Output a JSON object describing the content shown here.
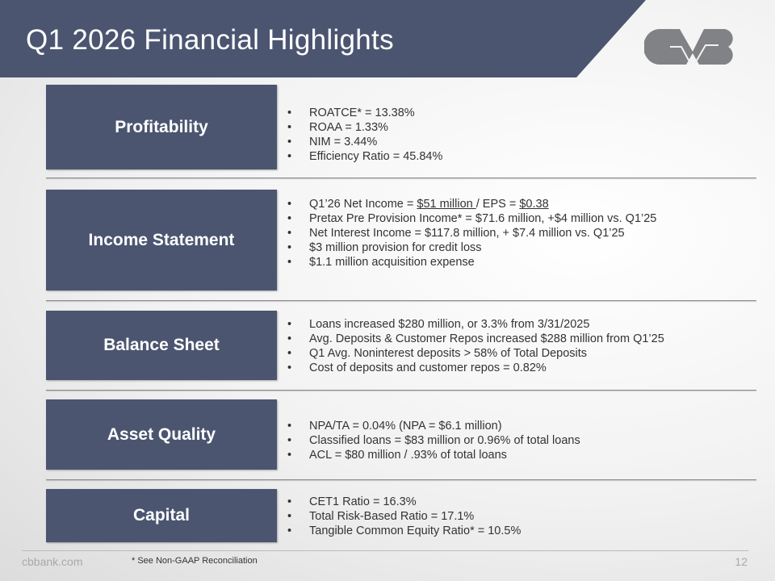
{
  "header": {
    "title": "Q1 2026 Financial Highlights",
    "logo_text": "CVB",
    "colors": {
      "banner": "#4b5570",
      "logo": "#808285"
    }
  },
  "sections": [
    {
      "label": "Profitability",
      "bullets": [
        {
          "text": "ROATCE* = 13.38%"
        },
        {
          "text": "ROAA = 1.33%"
        },
        {
          "text": "NIM = 3.44%"
        },
        {
          "text": "Efficiency Ratio = 45.84%"
        }
      ]
    },
    {
      "label": "Income Statement",
      "bullets": [
        {
          "p1": "Q1’26 Net Income = ",
          "u1": "$51 million ",
          "p2": "/ EPS = ",
          "u2": "$0.38"
        },
        {
          "text": "Pretax Pre Provision Income* = $71.6 million, +$4 million vs. Q1’25"
        },
        {
          "text": "Net Interest Income = $117.8 million, + $7.4 million vs. Q1’25"
        },
        {
          "text": "$3 million provision for credit loss"
        },
        {
          "text": "$1.1 million acquisition expense"
        }
      ]
    },
    {
      "label": "Balance Sheet",
      "bullets": [
        {
          "text": "Loans increased $280 million, or 3.3% from 3/31/2025"
        },
        {
          "text": "Avg. Deposits & Customer Repos increased $288 million from Q1’25"
        },
        {
          "text": "Q1 Avg. Noninterest deposits > 58% of Total Deposits"
        },
        {
          "text": "Cost of deposits and customer repos = 0.82%"
        }
      ]
    },
    {
      "label": "Asset Quality",
      "bullets": [
        {
          "text": "NPA/TA = 0.04% (NPA = $6.1 million)"
        },
        {
          "text": "Classified loans = $83 million or 0.96% of total loans"
        },
        {
          "text": "ACL = $80 million / .93% of total loans"
        }
      ]
    },
    {
      "label": "Capital",
      "bullets": [
        {
          "text": "CET1 Ratio = 16.3%"
        },
        {
          "text": "Total Risk-Based Ratio = 17.1%"
        },
        {
          "text": "Tangible Common Equity Ratio* = 10.5%"
        }
      ]
    }
  ],
  "footer": {
    "url": "cbbank.com",
    "footnote": "* See Non-GAAP Reconciliation",
    "page_number": "12"
  }
}
